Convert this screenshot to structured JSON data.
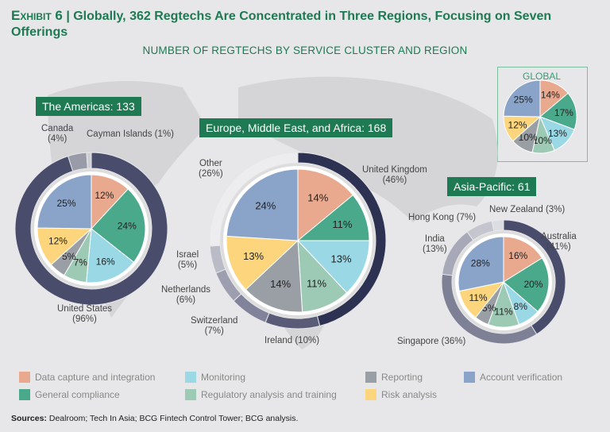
{
  "title": {
    "exhibit": "Exhibit 6",
    "text": "| Globally, 362 Regtechs Are Concentrated in Three Regions, Focusing on Seven Offerings"
  },
  "subtitle": "NUMBER OF REGTECHS BY SERVICE CLUSTER AND REGION",
  "colors": {
    "Data capture and integration": "#e8a98f",
    "General compliance": "#4aa98a",
    "Monitoring": "#9ad8e6",
    "Regulatory analysis and training": "#9dcab4",
    "Reporting": "#9a9fa6",
    "Risk analysis": "#fcd57c",
    "Account verification": "#8aa4c9"
  },
  "legend": [
    "Data capture and integration",
    "Monitoring",
    "Reporting",
    "Account verification",
    "General compliance",
    "Regulatory analysis and training",
    "Risk analysis"
  ],
  "sources": {
    "label": "Sources:",
    "text": "Dealroom; Tech In Asia; BCG Fintech Control Tower; BCG analysis."
  },
  "chart_data": [
    {
      "type": "pie",
      "title": "GLOBAL",
      "categories": [
        "Data capture and integration",
        "General compliance",
        "Monitoring",
        "Regulatory analysis and training",
        "Reporting",
        "Risk analysis",
        "Account verification"
      ],
      "values": [
        14,
        17,
        13,
        10,
        10,
        12,
        25
      ]
    },
    {
      "type": "pie",
      "title": "The Americas: 133",
      "categories": [
        "Data capture and integration",
        "General compliance",
        "Monitoring",
        "Regulatory analysis and training",
        "Reporting",
        "Risk analysis",
        "Account verification"
      ],
      "values": [
        12,
        24,
        16,
        7,
        5,
        12,
        25
      ],
      "countries": [
        {
          "name": "United States",
          "value": 96,
          "label": "United States\n(96%)"
        },
        {
          "name": "Canada",
          "value": 4,
          "label": "Canada\n(4%)"
        },
        {
          "name": "Cayman Islands",
          "value": 1,
          "label": "Cayman Islands (1%)"
        }
      ]
    },
    {
      "type": "pie",
      "title": "Europe, Middle East, and Africa: 168",
      "categories": [
        "Data capture and integration",
        "General compliance",
        "Monitoring",
        "Regulatory analysis and training",
        "Reporting",
        "Risk analysis",
        "Account verification"
      ],
      "values": [
        14,
        11,
        13,
        11,
        14,
        13,
        24
      ],
      "countries": [
        {
          "name": "United Kingdom",
          "value": 46,
          "label": "United Kingdom\n(46%)"
        },
        {
          "name": "Ireland",
          "value": 10,
          "label": "Ireland (10%)"
        },
        {
          "name": "Switzerland",
          "value": 7,
          "label": "Switzerland\n(7%)"
        },
        {
          "name": "Netherlands",
          "value": 6,
          "label": "Netherlands\n(6%)"
        },
        {
          "name": "Israel",
          "value": 5,
          "label": "Israel\n(5%)"
        },
        {
          "name": "Other",
          "value": 26,
          "label": "Other\n(26%)"
        }
      ]
    },
    {
      "type": "pie",
      "title": "Asia-Pacific: 61",
      "categories": [
        "Data capture and integration",
        "General compliance",
        "Monitoring",
        "Regulatory analysis and training",
        "Reporting",
        "Risk analysis",
        "Account verification"
      ],
      "values": [
        16,
        20,
        8,
        11,
        5,
        11,
        28
      ],
      "countries": [
        {
          "name": "Australia",
          "value": 41,
          "label": "Australia\n(41%)"
        },
        {
          "name": "Singapore",
          "value": 36,
          "label": "Singapore (36%)"
        },
        {
          "name": "India",
          "value": 13,
          "label": "India\n(13%)"
        },
        {
          "name": "Hong Kong",
          "value": 7,
          "label": "Hong Kong (7%)"
        },
        {
          "name": "New Zealand",
          "value": 3,
          "label": "New Zealand (3%)"
        }
      ]
    }
  ]
}
